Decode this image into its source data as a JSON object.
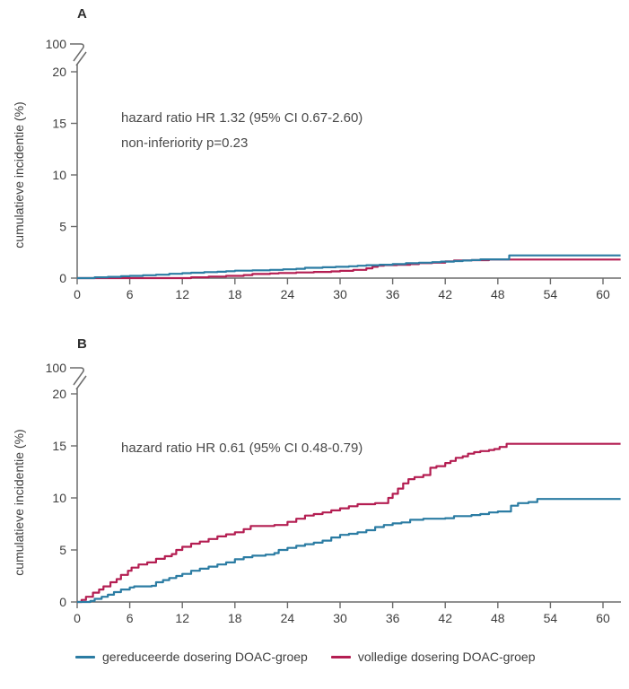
{
  "figure": {
    "background": "#ffffff"
  },
  "colors": {
    "reduced_dose": "#2b7ca3",
    "full_dose": "#b41e52",
    "text": "#3e3e3e",
    "axis": "#6b6b6b"
  },
  "chart_data": [
    {
      "type": "line",
      "step": true,
      "panel_label": "A",
      "annotation": [
        "hazard ratio HR 1.32 (95% CI 0.67-2.60)",
        "non-inferiority p=0.23"
      ],
      "ylabel": "cumulatieve incidentie (%)",
      "xlabel": "",
      "xticks": [
        0,
        6,
        12,
        18,
        24,
        30,
        36,
        42,
        48,
        54,
        60
      ],
      "yticks": [
        0,
        5,
        10,
        15,
        20
      ],
      "ytick_above_break": "100",
      "axis_break": true,
      "xlim": [
        0,
        62
      ],
      "ylim_visible": [
        0,
        21
      ],
      "grid": false,
      "series": [
        {
          "name": "gereduceerde dosering DOAC-groep",
          "color": "#2b7ca3",
          "points": [
            [
              0,
              0
            ],
            [
              2,
              0.08
            ],
            [
              3.5,
              0.12
            ],
            [
              5,
              0.18
            ],
            [
              6,
              0.22
            ],
            [
              7.5,
              0.28
            ],
            [
              9,
              0.33
            ],
            [
              10.5,
              0.42
            ],
            [
              12,
              0.48
            ],
            [
              13,
              0.52
            ],
            [
              14.5,
              0.58
            ],
            [
              16,
              0.62
            ],
            [
              17,
              0.67
            ],
            [
              18,
              0.72
            ],
            [
              20,
              0.76
            ],
            [
              22,
              0.8
            ],
            [
              23.5,
              0.85
            ],
            [
              25,
              0.9
            ],
            [
              26,
              1.0
            ],
            [
              28,
              1.05
            ],
            [
              29.5,
              1.1
            ],
            [
              31,
              1.15
            ],
            [
              32,
              1.2
            ],
            [
              33,
              1.25
            ],
            [
              34.5,
              1.3
            ],
            [
              36,
              1.36
            ],
            [
              37.5,
              1.44
            ],
            [
              39,
              1.5
            ],
            [
              40.5,
              1.55
            ],
            [
              41.5,
              1.6
            ],
            [
              43,
              1.65
            ],
            [
              44,
              1.7
            ],
            [
              45,
              1.75
            ],
            [
              46,
              1.82
            ],
            [
              49.3,
              2.2
            ],
            [
              62,
              2.2
            ]
          ]
        },
        {
          "name": "volledige dosering DOAC-groep",
          "color": "#b41e52",
          "points": [
            [
              0,
              0
            ],
            [
              13,
              0.08
            ],
            [
              15,
              0.15
            ],
            [
              17,
              0.22
            ],
            [
              19,
              0.3
            ],
            [
              20,
              0.4
            ],
            [
              22,
              0.45
            ],
            [
              23,
              0.5
            ],
            [
              25,
              0.55
            ],
            [
              27,
              0.6
            ],
            [
              29,
              0.65
            ],
            [
              30,
              0.7
            ],
            [
              31.5,
              0.8
            ],
            [
              33,
              0.95
            ],
            [
              33.7,
              1.1
            ],
            [
              34.3,
              1.2
            ],
            [
              35,
              1.26
            ],
            [
              36.5,
              1.3
            ],
            [
              38,
              1.36
            ],
            [
              39,
              1.45
            ],
            [
              40.5,
              1.5
            ],
            [
              42,
              1.62
            ],
            [
              43,
              1.7
            ],
            [
              45,
              1.74
            ],
            [
              47,
              1.8
            ],
            [
              62,
              1.8
            ]
          ]
        }
      ]
    },
    {
      "type": "line",
      "step": true,
      "panel_label": "B",
      "annotation": [
        "hazard ratio HR 0.61 (95% CI 0.48-0.79)"
      ],
      "ylabel": "cumulatieve incidentie (%)",
      "xlabel": "",
      "xticks": [
        0,
        6,
        12,
        18,
        24,
        30,
        36,
        42,
        48,
        54,
        60
      ],
      "yticks": [
        0,
        5,
        10,
        15,
        20
      ],
      "ytick_above_break": "100",
      "axis_break": true,
      "xlim": [
        0,
        62
      ],
      "ylim_visible": [
        0,
        21
      ],
      "grid": false,
      "series": [
        {
          "name": "gereduceerde dosering DOAC-groep",
          "color": "#2b7ca3",
          "points": [
            [
              0,
              0
            ],
            [
              1.5,
              0.1
            ],
            [
              2,
              0.3
            ],
            [
              2.8,
              0.5
            ],
            [
              3.5,
              0.7
            ],
            [
              4.2,
              0.95
            ],
            [
              5,
              1.2
            ],
            [
              6,
              1.4
            ],
            [
              6.5,
              1.5
            ],
            [
              8.5,
              1.55
            ],
            [
              9,
              1.9
            ],
            [
              9.8,
              2.1
            ],
            [
              10.5,
              2.3
            ],
            [
              11.3,
              2.5
            ],
            [
              12,
              2.7
            ],
            [
              13,
              3.0
            ],
            [
              14,
              3.2
            ],
            [
              15,
              3.4
            ],
            [
              16,
              3.6
            ],
            [
              17,
              3.8
            ],
            [
              18,
              4.1
            ],
            [
              19,
              4.3
            ],
            [
              20,
              4.45
            ],
            [
              21.5,
              4.55
            ],
            [
              22.5,
              4.7
            ],
            [
              23,
              5.0
            ],
            [
              24,
              5.2
            ],
            [
              25,
              5.4
            ],
            [
              26,
              5.55
            ],
            [
              27,
              5.7
            ],
            [
              28,
              5.9
            ],
            [
              29,
              6.2
            ],
            [
              30,
              6.45
            ],
            [
              31,
              6.55
            ],
            [
              32,
              6.7
            ],
            [
              33,
              6.9
            ],
            [
              34,
              7.2
            ],
            [
              35,
              7.4
            ],
            [
              36,
              7.55
            ],
            [
              37,
              7.65
            ],
            [
              38,
              7.9
            ],
            [
              39.5,
              8.0
            ],
            [
              42,
              8.05
            ],
            [
              43,
              8.25
            ],
            [
              45,
              8.35
            ],
            [
              46,
              8.45
            ],
            [
              47,
              8.6
            ],
            [
              48,
              8.7
            ],
            [
              49.5,
              9.25
            ],
            [
              50.3,
              9.5
            ],
            [
              51.5,
              9.6
            ],
            [
              52.5,
              9.9
            ],
            [
              62,
              9.9
            ]
          ]
        },
        {
          "name": "volledige dosering DOAC-groep",
          "color": "#b41e52",
          "points": [
            [
              0,
              0
            ],
            [
              0.5,
              0.2
            ],
            [
              1,
              0.5
            ],
            [
              1.8,
              0.9
            ],
            [
              2.5,
              1.2
            ],
            [
              3,
              1.5
            ],
            [
              3.8,
              1.9
            ],
            [
              4.5,
              2.2
            ],
            [
              5,
              2.6
            ],
            [
              5.8,
              3.0
            ],
            [
              6.2,
              3.3
            ],
            [
              7,
              3.6
            ],
            [
              8,
              3.8
            ],
            [
              9,
              4.15
            ],
            [
              10,
              4.4
            ],
            [
              10.8,
              4.6
            ],
            [
              11.3,
              5.0
            ],
            [
              12,
              5.3
            ],
            [
              13,
              5.6
            ],
            [
              14,
              5.8
            ],
            [
              15,
              6.05
            ],
            [
              16,
              6.3
            ],
            [
              17,
              6.5
            ],
            [
              18,
              6.7
            ],
            [
              19,
              7.0
            ],
            [
              19.8,
              7.3
            ],
            [
              22.5,
              7.4
            ],
            [
              24,
              7.7
            ],
            [
              25,
              8.0
            ],
            [
              26,
              8.3
            ],
            [
              27,
              8.45
            ],
            [
              28,
              8.6
            ],
            [
              29,
              8.8
            ],
            [
              30,
              9.0
            ],
            [
              31,
              9.2
            ],
            [
              32,
              9.4
            ],
            [
              34,
              9.5
            ],
            [
              35.5,
              10.0
            ],
            [
              36,
              10.4
            ],
            [
              36.6,
              10.9
            ],
            [
              37.2,
              11.4
            ],
            [
              37.8,
              11.8
            ],
            [
              38.5,
              12.0
            ],
            [
              39.5,
              12.2
            ],
            [
              40.3,
              12.9
            ],
            [
              41,
              13.05
            ],
            [
              42,
              13.35
            ],
            [
              42.6,
              13.55
            ],
            [
              43.2,
              13.85
            ],
            [
              44,
              14.0
            ],
            [
              44.6,
              14.25
            ],
            [
              45.3,
              14.4
            ],
            [
              46,
              14.5
            ],
            [
              47,
              14.6
            ],
            [
              47.6,
              14.7
            ],
            [
              48.2,
              14.9
            ],
            [
              49,
              15.2
            ],
            [
              62,
              15.2
            ]
          ]
        }
      ]
    }
  ],
  "legend": {
    "items": [
      {
        "label": "gereduceerde dosering DOAC-groep",
        "color": "#2b7ca3"
      },
      {
        "label": "volledige dosering DOAC-groep",
        "color": "#b41e52"
      }
    ]
  }
}
